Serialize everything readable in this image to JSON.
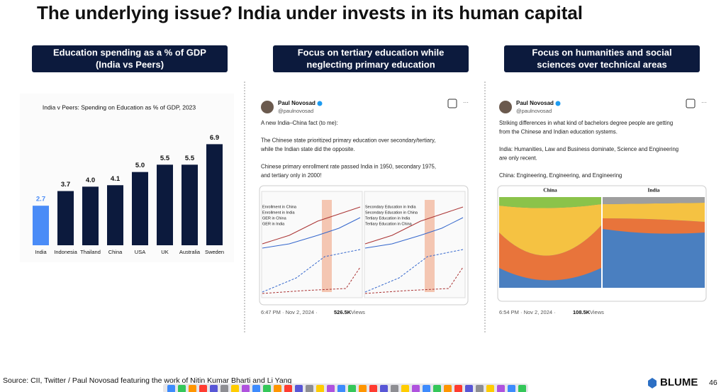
{
  "title": "The underlying issue? India under invests in its human capital",
  "panels": [
    {
      "heading": [
        "Education spending as a % of GDP",
        "(India vs Peers)"
      ]
    },
    {
      "heading": [
        "Focus on tertiary education while",
        "neglecting primary education"
      ]
    },
    {
      "heading": [
        "Focus on humanities and social",
        "sciences over technical areas"
      ]
    }
  ],
  "chart_data": {
    "type": "bar",
    "title": "India v Peers: Spending on Education as % of GDP, 2023",
    "categories": [
      "India",
      "Indonesia",
      "Thailand",
      "China",
      "USA",
      "UK",
      "Australia",
      "Sweden"
    ],
    "values": [
      2.7,
      3.7,
      4.0,
      4.1,
      5.0,
      5.5,
      5.5,
      6.9
    ],
    "value_labels": [
      "2.7",
      "3.7",
      "4.0",
      "4.1",
      "5.0",
      "5.5",
      "5.5",
      "6.9"
    ],
    "colors": [
      "#4a8cf7",
      "#0c1a3d",
      "#0c1a3d",
      "#0c1a3d",
      "#0c1a3d",
      "#0c1a3d",
      "#0c1a3d",
      "#0c1a3d"
    ],
    "label_colors": [
      "#4a8cf7",
      "#111111",
      "#111111",
      "#111111",
      "#111111",
      "#111111",
      "#111111",
      "#111111"
    ],
    "ylim": [
      0,
      7.5
    ]
  },
  "tweets": [
    {
      "name": "Paul Novosad",
      "handle": "@paulnovosad",
      "text": [
        "A new India–China fact (to me):",
        "",
        "The Chinese state prioritized primary education over secondary/tertiary,",
        "while the Indian state did the opposite.",
        "",
        "Chinese primary enrollment rate passed India in 1950, secondary 1975,",
        "and tertiary only in 2000!"
      ],
      "image_labels": [
        "Enrollment in China",
        "Enrollment in India",
        "GER in China",
        "GER in India",
        "Secondary Education in India",
        "Secondary Education in China",
        "Tertiary Education in India",
        "Tertiary Education in China"
      ],
      "time": "6:47 PM · Nov 2, 2024 · ",
      "views": "526.5K",
      "views_word": " Views"
    },
    {
      "name": "Paul Novosad",
      "handle": "@paulnovosad",
      "text": [
        "Striking differences in what kind of bachelors degree people are getting",
        "from the Chinese and Indian education systems.",
        "",
        "India: Humanities, Law and Business dominate, Science and Engineering",
        "are only recent.",
        "",
        "China: Engineering, Engineering, and Engineering"
      ],
      "image_labels": [
        "China",
        "India"
      ],
      "time": "6:54 PM · Nov 2, 2024 · ",
      "views": "108.5K",
      "views_word": " Views"
    }
  ],
  "source": "Source: CII, Twitter / Paul Novosad featuring the work of Nitin Kumar Bharti and  Li Yang",
  "logo": "BLUME",
  "page_number": 46
}
